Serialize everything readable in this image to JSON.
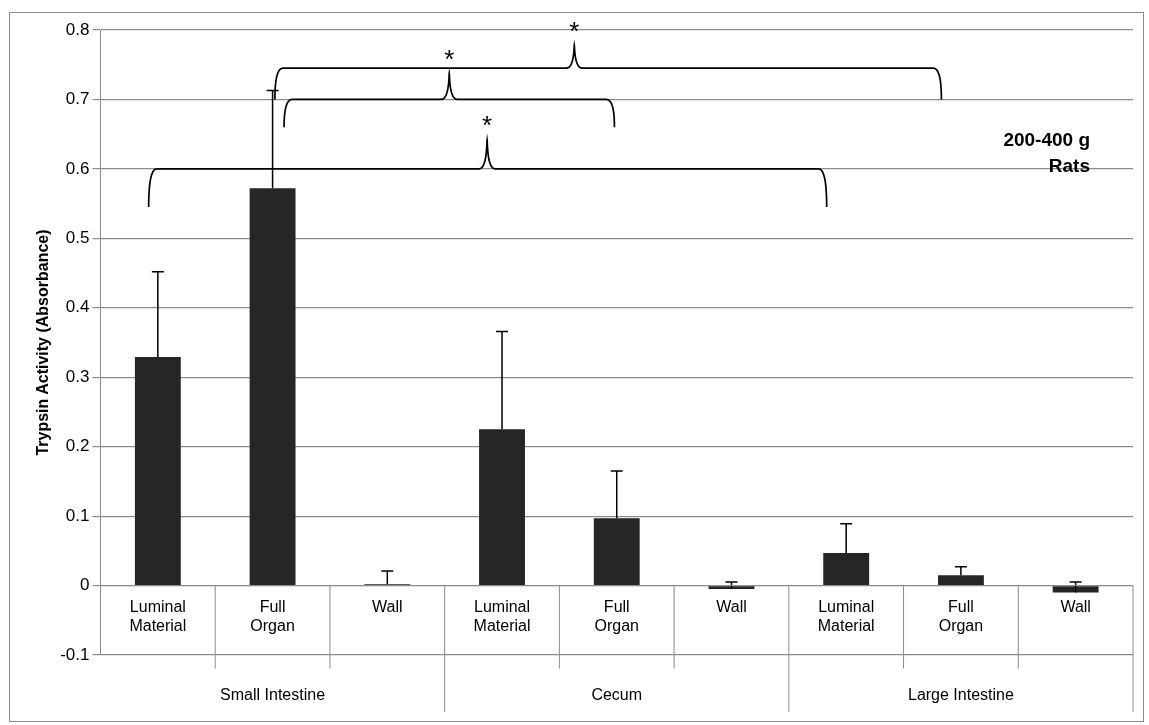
{
  "chart_data": {
    "type": "bar",
    "ylabel": "Trypsin Activity (Absorbance)",
    "categories": [
      "Luminal Material",
      "Full Organ",
      "Wall",
      "Luminal Material",
      "Full Organ",
      "Wall",
      "Luminal Material",
      "Full Organ",
      "Wall"
    ],
    "values": [
      0.329,
      0.572,
      0.002,
      0.225,
      0.097,
      -0.005,
      0.047,
      0.015,
      -0.01
    ],
    "errors": [
      [
        0.329,
        0.452
      ],
      [
        0.572,
        0.713
      ],
      [
        0.002,
        0.021
      ],
      [
        0.225,
        0.366
      ],
      [
        0.097,
        0.165
      ],
      [
        -0.005,
        0.005
      ],
      [
        0.047,
        0.089
      ],
      [
        0.015,
        0.027
      ],
      [
        -0.01,
        0.005
      ]
    ],
    "color": "#262626",
    "ylim": [
      -0.1,
      0.8
    ],
    "yticks": [
      -0.1,
      0,
      0.1,
      0.2,
      0.3,
      0.4,
      0.5,
      0.6,
      0.7,
      0.8
    ],
    "grid": "y",
    "legend": false,
    "annotations": [
      "*",
      "*",
      "*",
      "200-400 g\nRats",
      "Small Intestine",
      "Cecum",
      "Large Intestine"
    ]
  }
}
